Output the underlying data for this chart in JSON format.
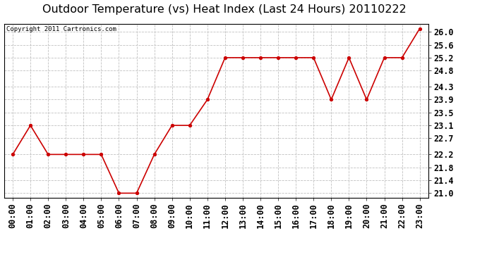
{
  "title": "Outdoor Temperature (vs) Heat Index (Last 24 Hours) 20110222",
  "copyright_text": "Copyright 2011 Cartronics.com",
  "x_labels": [
    "00:00",
    "01:00",
    "02:00",
    "03:00",
    "04:00",
    "05:00",
    "06:00",
    "07:00",
    "08:00",
    "09:00",
    "10:00",
    "11:00",
    "12:00",
    "13:00",
    "14:00",
    "15:00",
    "16:00",
    "17:00",
    "18:00",
    "19:00",
    "20:00",
    "21:00",
    "22:00",
    "23:00"
  ],
  "y_values": [
    22.2,
    23.1,
    22.2,
    22.2,
    22.2,
    22.2,
    21.0,
    21.0,
    22.2,
    23.1,
    23.1,
    23.9,
    25.2,
    25.2,
    25.2,
    25.2,
    25.2,
    25.2,
    23.9,
    25.2,
    23.9,
    25.2,
    25.2,
    26.1
  ],
  "y_ticks": [
    21.0,
    21.4,
    21.8,
    22.2,
    22.7,
    23.1,
    23.5,
    23.9,
    24.3,
    24.8,
    25.2,
    25.6,
    26.0
  ],
  "y_min": 20.85,
  "y_max": 26.25,
  "line_color": "#cc0000",
  "marker_color": "#cc0000",
  "bg_color": "#ffffff",
  "plot_bg_color": "#ffffff",
  "grid_color": "#c0c0c0",
  "title_fontsize": 11.5,
  "copyright_fontsize": 6.5,
  "tick_fontsize": 8.5
}
